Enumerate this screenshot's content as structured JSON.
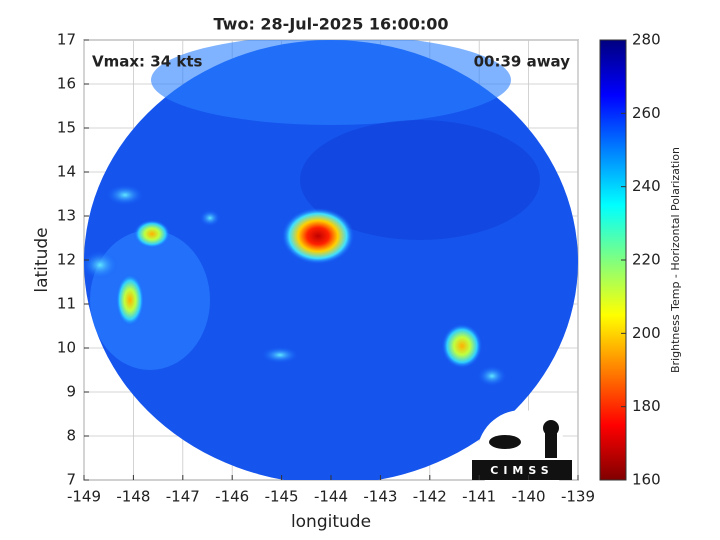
{
  "chart_data": {
    "type": "image",
    "title": "Two: 28-Jul-2025 16:00:00",
    "xlabel": "longitude",
    "ylabel": "latitude",
    "xlim": [
      -149,
      -139
    ],
    "xticks": [
      -149,
      -148,
      -147,
      -146,
      -145,
      -144,
      -143,
      -142,
      -141,
      -140,
      -139
    ],
    "ylim": [
      7,
      17
    ],
    "yticks": [
      7,
      8,
      9,
      10,
      11,
      12,
      13,
      14,
      15,
      16,
      17
    ],
    "grid": true,
    "annotations": [
      "Vmax: 34 kts",
      "00:39 away"
    ],
    "logo": "CIMSS",
    "colorbar": {
      "label": "Brightness Temp - Horizontal Polarization",
      "lim": [
        160,
        280
      ],
      "ticks": [
        160,
        180,
        200,
        220,
        240,
        260,
        280
      ],
      "colors": [
        "#800000",
        "#ff0000",
        "#ff8000",
        "#ffff00",
        "#80ff80",
        "#00ffff",
        "#0080ff",
        "#0000ff",
        "#000080"
      ]
    }
  }
}
